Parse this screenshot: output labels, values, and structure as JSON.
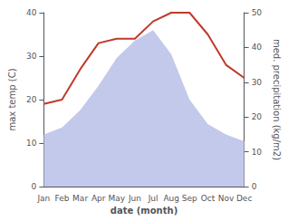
{
  "chart_data": {
    "type": "line",
    "xlabel": "date (month)",
    "ylabel": "max temp (C)",
    "y2label": "med. precipitation (kg/m2)",
    "categories": [
      "Jan",
      "Feb",
      "Mar",
      "Apr",
      "May",
      "Jun",
      "Jul",
      "Aug",
      "Sep",
      "Oct",
      "Nov",
      "Dec"
    ],
    "series": [
      {
        "type": "area",
        "axis": "y2",
        "color": "#b8bfe8",
        "values": [
          15,
          17,
          22,
          29,
          37,
          42,
          45,
          38,
          25,
          18,
          15,
          13
        ]
      },
      {
        "type": "line",
        "color": "#c0392b",
        "values": [
          19,
          20,
          27,
          33,
          34,
          34,
          38,
          40,
          40,
          35,
          28,
          25
        ]
      }
    ],
    "ylim": [
      0,
      40
    ],
    "yticks": [
      0,
      10,
      20,
      30,
      40
    ],
    "y2lim": [
      0,
      50
    ],
    "y2ticks": [
      0,
      10,
      20,
      30,
      40,
      50
    ],
    "grid": false
  }
}
